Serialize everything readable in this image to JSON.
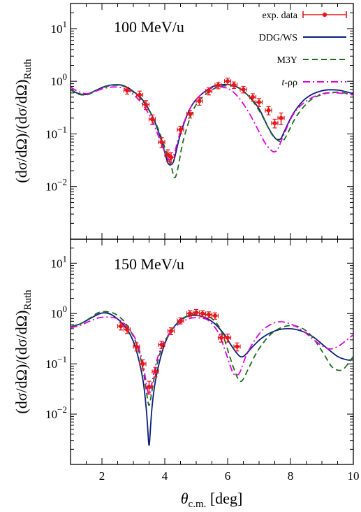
{
  "chart_data": [
    {
      "type": "line",
      "energy_label": "100 MeV/u",
      "ylabel_main": "(dσ/dΩ)/(dσ/dΩ)",
      "ylabel_sub": "Ruth",
      "xlim": [
        1,
        10
      ],
      "ylim": [
        0.001,
        30
      ],
      "yscale": "log",
      "y_ticks": [
        {
          "exp": "1"
        },
        {
          "exp": "0"
        },
        {
          "exp": "−1"
        },
        {
          "exp": "−2"
        }
      ],
      "legend_position": "top-right",
      "legend": [
        {
          "label": "exp. data",
          "style": "points",
          "color": "#e8161b"
        },
        {
          "label": "DDG/WS",
          "style": "solid",
          "color": "#0b1e7a"
        },
        {
          "label": "M3Y",
          "style": "dashed",
          "color": "#1e6b1e"
        },
        {
          "label_italic": "t",
          "label_rest": "-ρρ",
          "style": "dashdot",
          "color": "#e100e1"
        }
      ],
      "series": [
        {
          "key": "ddg",
          "color": "#0b1e7a",
          "dash": "none",
          "x": [
            1,
            1.2,
            1.5,
            1.8,
            2.1,
            2.4,
            2.7,
            3.0,
            3.3,
            3.6,
            3.8,
            4.0,
            4.1,
            4.2,
            4.3,
            4.5,
            4.8,
            5.1,
            5.5,
            5.8,
            6.1,
            6.4,
            6.7,
            7.0,
            7.3,
            7.5,
            7.6,
            7.7,
            7.8,
            8.1,
            8.5,
            9.0,
            9.5,
            10
          ],
          "y": [
            0.72,
            0.6,
            0.56,
            0.67,
            0.8,
            0.86,
            0.82,
            0.64,
            0.44,
            0.22,
            0.11,
            0.045,
            0.028,
            0.026,
            0.033,
            0.1,
            0.3,
            0.52,
            0.78,
            0.86,
            0.85,
            0.72,
            0.5,
            0.3,
            0.13,
            0.085,
            0.078,
            0.082,
            0.11,
            0.25,
            0.48,
            0.66,
            0.68,
            0.58
          ]
        },
        {
          "key": "m3y",
          "color": "#1e6b1e",
          "dash": "8,5",
          "x": [
            1,
            1.2,
            1.5,
            1.8,
            2.1,
            2.4,
            2.7,
            3.0,
            3.3,
            3.6,
            3.8,
            4.0,
            4.2,
            4.3,
            4.4,
            4.6,
            4.9,
            5.2,
            5.6,
            5.9,
            6.2,
            6.5,
            6.8,
            7.1,
            7.4,
            7.6,
            7.7,
            7.8,
            7.9,
            8.2,
            8.6,
            9.0,
            9.5,
            10
          ],
          "y": [
            0.7,
            0.58,
            0.55,
            0.65,
            0.78,
            0.84,
            0.8,
            0.62,
            0.42,
            0.22,
            0.12,
            0.055,
            0.025,
            0.015,
            0.02,
            0.08,
            0.28,
            0.5,
            0.74,
            0.82,
            0.8,
            0.65,
            0.42,
            0.22,
            0.1,
            0.075,
            0.072,
            0.078,
            0.1,
            0.22,
            0.42,
            0.56,
            0.62,
            0.55
          ]
        },
        {
          "key": "trr",
          "color": "#e100e1",
          "dash": "10,4,2,4",
          "x": [
            1,
            1.2,
            1.5,
            1.8,
            2.1,
            2.4,
            2.7,
            3.0,
            3.3,
            3.6,
            3.8,
            4.0,
            4.1,
            4.2,
            4.3,
            4.5,
            4.8,
            5.1,
            5.5,
            5.8,
            6.1,
            6.4,
            6.7,
            7.0,
            7.2,
            7.4,
            7.5,
            7.6,
            7.8,
            8.1,
            8.5,
            9.0,
            9.5,
            10
          ],
          "y": [
            0.78,
            0.66,
            0.58,
            0.65,
            0.74,
            0.78,
            0.73,
            0.56,
            0.36,
            0.18,
            0.09,
            0.045,
            0.034,
            0.033,
            0.042,
            0.11,
            0.3,
            0.52,
            0.75,
            0.78,
            0.68,
            0.45,
            0.24,
            0.11,
            0.066,
            0.048,
            0.046,
            0.052,
            0.1,
            0.24,
            0.42,
            0.58,
            0.6,
            0.55
          ]
        }
      ],
      "data_points": [
        {
          "x": 2.8,
          "y": 0.67,
          "xerr": 0.1,
          "yerr": 0.1
        },
        {
          "x": 3.2,
          "y": 0.55,
          "xerr": 0.1,
          "yerr": 0.1
        },
        {
          "x": 3.4,
          "y": 0.36,
          "xerr": 0.1,
          "yerr": 0.07
        },
        {
          "x": 3.6,
          "y": 0.19,
          "xerr": 0.1,
          "yerr": 0.04
        },
        {
          "x": 3.9,
          "y": 0.07,
          "xerr": 0.1,
          "yerr": 0.015
        },
        {
          "x": 4.1,
          "y": 0.04,
          "xerr": 0.1,
          "yerr": 0.01
        },
        {
          "x": 4.2,
          "y": 0.036,
          "xerr": 0.1,
          "yerr": 0.008
        },
        {
          "x": 4.5,
          "y": 0.12,
          "xerr": 0.1,
          "yerr": 0.02
        },
        {
          "x": 4.8,
          "y": 0.24,
          "xerr": 0.1,
          "yerr": 0.04
        },
        {
          "x": 5.1,
          "y": 0.42,
          "xerr": 0.1,
          "yerr": 0.07
        },
        {
          "x": 5.4,
          "y": 0.65,
          "xerr": 0.1,
          "yerr": 0.1
        },
        {
          "x": 5.7,
          "y": 0.84,
          "xerr": 0.1,
          "yerr": 0.12
        },
        {
          "x": 6.0,
          "y": 1.0,
          "xerr": 0.1,
          "yerr": 0.14
        },
        {
          "x": 6.2,
          "y": 0.85,
          "xerr": 0.1,
          "yerr": 0.12
        },
        {
          "x": 6.5,
          "y": 0.7,
          "xerr": 0.1,
          "yerr": 0.1
        },
        {
          "x": 6.8,
          "y": 0.5,
          "xerr": 0.1,
          "yerr": 0.08
        },
        {
          "x": 7.0,
          "y": 0.4,
          "xerr": 0.1,
          "yerr": 0.07
        },
        {
          "x": 7.3,
          "y": 0.28,
          "xerr": 0.1,
          "yerr": 0.05
        },
        {
          "x": 7.5,
          "y": 0.16,
          "xerr": 0.1,
          "yerr": 0.03
        },
        {
          "x": 7.7,
          "y": 0.2,
          "xerr": 0.1,
          "yerr": 0.05
        }
      ]
    },
    {
      "type": "line",
      "energy_label": "150 MeV/u",
      "ylabel_main": "(dσ/dΩ)/(dσ/dΩ)",
      "ylabel_sub": "Ruth",
      "xlabel_main": "θ",
      "xlabel_sub": "c.m.",
      "xlabel_unit": " [deg]",
      "xlim": [
        1,
        10
      ],
      "ylim": [
        0.001,
        30
      ],
      "yscale": "log",
      "x_ticks": [
        "2",
        "4",
        "6",
        "8",
        "10"
      ],
      "y_ticks": [
        {
          "exp": "1"
        },
        {
          "exp": "0"
        },
        {
          "exp": "−1"
        },
        {
          "exp": "−2"
        }
      ],
      "series": [
        {
          "key": "ddg",
          "color": "#0b1e7a",
          "dash": "none",
          "x": [
            1,
            1.3,
            1.6,
            1.9,
            2.1,
            2.3,
            2.6,
            2.9,
            3.1,
            3.3,
            3.4,
            3.45,
            3.5,
            3.55,
            3.6,
            3.7,
            3.9,
            4.1,
            4.4,
            4.7,
            5.0,
            5.3,
            5.6,
            5.9,
            6.1,
            6.3,
            6.4,
            6.5,
            6.6,
            6.8,
            7.1,
            7.5,
            7.9,
            8.3,
            8.7,
            9.1,
            9.5,
            9.8,
            10
          ],
          "y": [
            0.55,
            0.62,
            0.78,
            0.98,
            1.03,
            0.95,
            0.68,
            0.38,
            0.18,
            0.05,
            0.015,
            0.006,
            0.0024,
            0.006,
            0.015,
            0.045,
            0.16,
            0.35,
            0.65,
            0.88,
            0.92,
            0.82,
            0.62,
            0.38,
            0.24,
            0.16,
            0.14,
            0.14,
            0.16,
            0.22,
            0.33,
            0.45,
            0.5,
            0.46,
            0.35,
            0.22,
            0.14,
            0.12,
            0.12
          ]
        },
        {
          "key": "m3y",
          "color": "#1e6b1e",
          "dash": "8,5",
          "x": [
            1,
            1.3,
            1.6,
            1.9,
            2.2,
            2.5,
            2.8,
            3.1,
            3.3,
            3.45,
            3.5,
            3.55,
            3.7,
            3.9,
            4.2,
            4.5,
            4.8,
            5.1,
            5.4,
            5.7,
            5.9,
            6.1,
            6.3,
            6.4,
            6.5,
            6.7,
            7.0,
            7.4,
            7.8,
            8.2,
            8.6,
            9.0,
            9.3,
            9.5,
            9.7,
            10
          ],
          "y": [
            0.55,
            0.62,
            0.8,
            1.05,
            1.08,
            0.92,
            0.58,
            0.25,
            0.08,
            0.02,
            0.015,
            0.02,
            0.07,
            0.2,
            0.45,
            0.72,
            0.92,
            0.98,
            0.88,
            0.58,
            0.3,
            0.12,
            0.055,
            0.045,
            0.05,
            0.09,
            0.2,
            0.4,
            0.55,
            0.56,
            0.4,
            0.18,
            0.09,
            0.075,
            0.08,
            0.14
          ]
        },
        {
          "key": "trr",
          "color": "#e100e1",
          "dash": "10,4,2,4",
          "x": [
            1,
            1.3,
            1.6,
            1.9,
            2.2,
            2.5,
            2.8,
            3.1,
            3.3,
            3.45,
            3.5,
            3.55,
            3.7,
            3.9,
            4.2,
            4.5,
            4.8,
            5.1,
            5.4,
            5.7,
            5.9,
            6.1,
            6.2,
            6.3,
            6.4,
            6.6,
            6.9,
            7.2,
            7.6,
            8.0,
            8.4,
            8.8,
            9.2,
            9.5,
            9.8,
            10
          ],
          "y": [
            0.52,
            0.58,
            0.7,
            0.82,
            0.85,
            0.78,
            0.55,
            0.28,
            0.1,
            0.03,
            0.025,
            0.03,
            0.09,
            0.22,
            0.45,
            0.65,
            0.8,
            0.82,
            0.72,
            0.42,
            0.2,
            0.085,
            0.062,
            0.06,
            0.07,
            0.15,
            0.32,
            0.52,
            0.68,
            0.62,
            0.45,
            0.28,
            0.2,
            0.22,
            0.3,
            0.38
          ]
        }
      ],
      "data_points": [
        {
          "x": 2.6,
          "y": 0.56,
          "xerr": 0.1,
          "yerr": 0.09
        },
        {
          "x": 2.8,
          "y": 0.48,
          "xerr": 0.1,
          "yerr": 0.08
        },
        {
          "x": 3.1,
          "y": 0.22,
          "xerr": 0.1,
          "yerr": 0.04
        },
        {
          "x": 3.3,
          "y": 0.1,
          "xerr": 0.1,
          "yerr": 0.02
        },
        {
          "x": 3.5,
          "y": 0.035,
          "xerr": 0.1,
          "yerr": 0.01
        },
        {
          "x": 3.7,
          "y": 0.07,
          "xerr": 0.1,
          "yerr": 0.015
        },
        {
          "x": 3.9,
          "y": 0.24,
          "xerr": 0.1,
          "yerr": 0.04
        },
        {
          "x": 4.2,
          "y": 0.45,
          "xerr": 0.1,
          "yerr": 0.07
        },
        {
          "x": 4.5,
          "y": 0.72,
          "xerr": 0.1,
          "yerr": 0.1
        },
        {
          "x": 4.8,
          "y": 1.0,
          "xerr": 0.1,
          "yerr": 0.14
        },
        {
          "x": 5.0,
          "y": 1.05,
          "xerr": 0.1,
          "yerr": 0.15
        },
        {
          "x": 5.2,
          "y": 1.0,
          "xerr": 0.1,
          "yerr": 0.14
        },
        {
          "x": 5.4,
          "y": 0.95,
          "xerr": 0.1,
          "yerr": 0.13
        },
        {
          "x": 5.6,
          "y": 0.9,
          "xerr": 0.1,
          "yerr": 0.13
        },
        {
          "x": 5.8,
          "y": 0.33,
          "xerr": 0.1,
          "yerr": 0.06
        },
        {
          "x": 6.0,
          "y": 0.33,
          "xerr": 0.1,
          "yerr": 0.06
        },
        {
          "x": 6.3,
          "y": 0.22,
          "xerr": 0.1,
          "yerr": 0.04
        }
      ]
    }
  ]
}
